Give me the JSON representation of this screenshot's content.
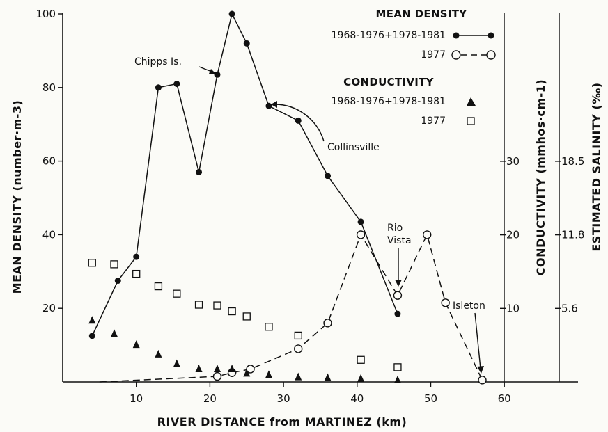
{
  "chart_data": {
    "type": "line",
    "xlabel": "RIVER DISTANCE from MARTINEZ (km)",
    "ylabel": "MEAN DENSITY (number·m-3)",
    "y2label": "CONDUCTIVITY (mmhos·cm-1)",
    "y3label": "ESTIMATED SALINITY (‰)",
    "xlim": [
      0,
      60
    ],
    "ylim": [
      0,
      100
    ],
    "y2lim": [
      0,
      30
    ],
    "x_ticks": [
      "10",
      "20",
      "30",
      "40",
      "50",
      "60"
    ],
    "y_ticks": [
      "20",
      "40",
      "60",
      "80",
      "100"
    ],
    "y2_ticks": [
      "10",
      "20",
      "30"
    ],
    "y3_ticks": [
      "5.6",
      "11.8",
      "18.5"
    ],
    "grid": false,
    "legend_position": "top-right",
    "legend": {
      "density_heading": "MEAN DENSITY",
      "conductivity_heading": "CONDUCTIVITY",
      "density_series_1": "1968-1976+1978-1981",
      "density_series_2": "1977",
      "conductivity_series_1": "1968-1976+1978-1981",
      "conductivity_series_2": "1977"
    },
    "annotations": {
      "chipps": "Chipps Is.",
      "collinsville": "Collinsville",
      "rio": "Rio",
      "vista": "Vista",
      "isleton": "Isleton"
    },
    "series": [
      {
        "name": "1968-1976+1978-1981",
        "quantity": "MEAN DENSITY",
        "axis": "left",
        "marker": "filled-circle",
        "line": "solid",
        "x": [
          4,
          7.5,
          10,
          13,
          15.5,
          18.5,
          21,
          23,
          25,
          28,
          32,
          36,
          40.5,
          45.5
        ],
        "y": [
          12.5,
          27.5,
          34,
          80,
          81,
          57,
          83.5,
          100,
          92,
          75,
          71,
          56,
          43.5,
          18.5
        ]
      },
      {
        "name": "1977",
        "quantity": "MEAN DENSITY",
        "axis": "left",
        "marker": "open-circle",
        "line": "dashed",
        "x": [
          5,
          21,
          23,
          25.5,
          32,
          36,
          40.5,
          45.5,
          49.5,
          52,
          57
        ],
        "y": [
          0,
          1.5,
          2.5,
          3.5,
          9,
          16,
          40,
          23.5,
          40,
          21.5,
          0.5
        ]
      },
      {
        "name": "1968-1976+1978-1981",
        "quantity": "CONDUCTIVITY",
        "axis": "right",
        "marker": "filled-triangle",
        "x": [
          4,
          7,
          10,
          13,
          15.5,
          18.5,
          21,
          23,
          25,
          28,
          32,
          36,
          40.5,
          45.5
        ],
        "y": [
          8.4,
          6.6,
          5.1,
          3.8,
          2.5,
          1.8,
          1.8,
          1.8,
          1.2,
          1.0,
          0.7,
          0.6,
          0.5,
          0.3
        ]
      },
      {
        "name": "1977",
        "quantity": "CONDUCTIVITY",
        "axis": "right",
        "marker": "open-square",
        "x": [
          4,
          7,
          10,
          13,
          15.5,
          18.5,
          21,
          23,
          25,
          28,
          32,
          40.5,
          45.5
        ],
        "y": [
          16.2,
          16.0,
          14.7,
          13.0,
          12.0,
          10.5,
          10.4,
          9.6,
          8.9,
          7.5,
          6.3,
          3.0,
          2.0
        ]
      }
    ]
  }
}
